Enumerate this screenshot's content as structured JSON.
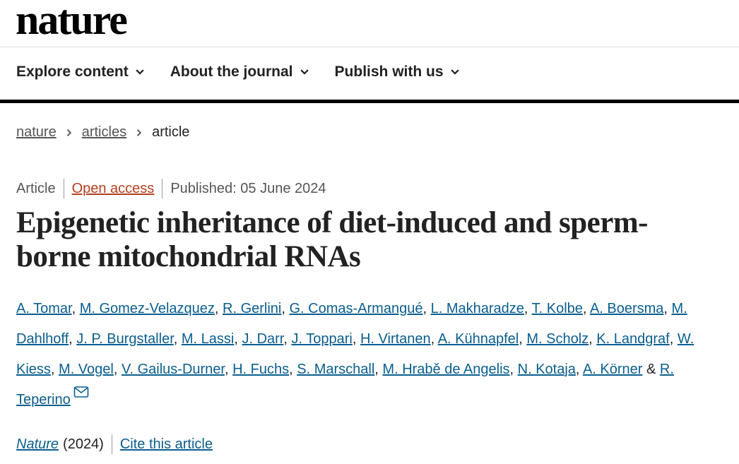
{
  "header": {
    "logo": "nature"
  },
  "nav": [
    "Explore content",
    "About the journal",
    "Publish with us"
  ],
  "breadcrumb": [
    "nature",
    "articles",
    "article"
  ],
  "article": {
    "type": "Article",
    "access": "Open access",
    "published": "Published: 05 June 2024",
    "title": "Epigenetic inheritance of diet-induced and sperm-borne mitochondrial RNAs",
    "authors": [
      "A. Tomar",
      "M. Gomez-Velazquez",
      "R. Gerlini",
      "G. Comas-Armangué",
      "L. Makharadze",
      "T. Kolbe",
      "A. Boersma",
      "M. Dahlhoff",
      "J. P. Burgstaller",
      "M. Lassi",
      "J. Darr",
      "J. Toppari",
      "H. Virtanen",
      "A. Kühnapfel",
      "M. Scholz",
      "K. Landgraf",
      "W. Kiess",
      "M. Vogel",
      "V. Gailus-Durner",
      "H. Fuchs",
      "S. Marschall",
      "M. Hrabě de Angelis",
      "N. Kotaja",
      "A. Körner",
      "R. Teperino"
    ],
    "author_separator": ",",
    "author_final_joiner": "&",
    "journal": "Nature",
    "year": "(2024)",
    "cite": "Cite this article"
  }
}
